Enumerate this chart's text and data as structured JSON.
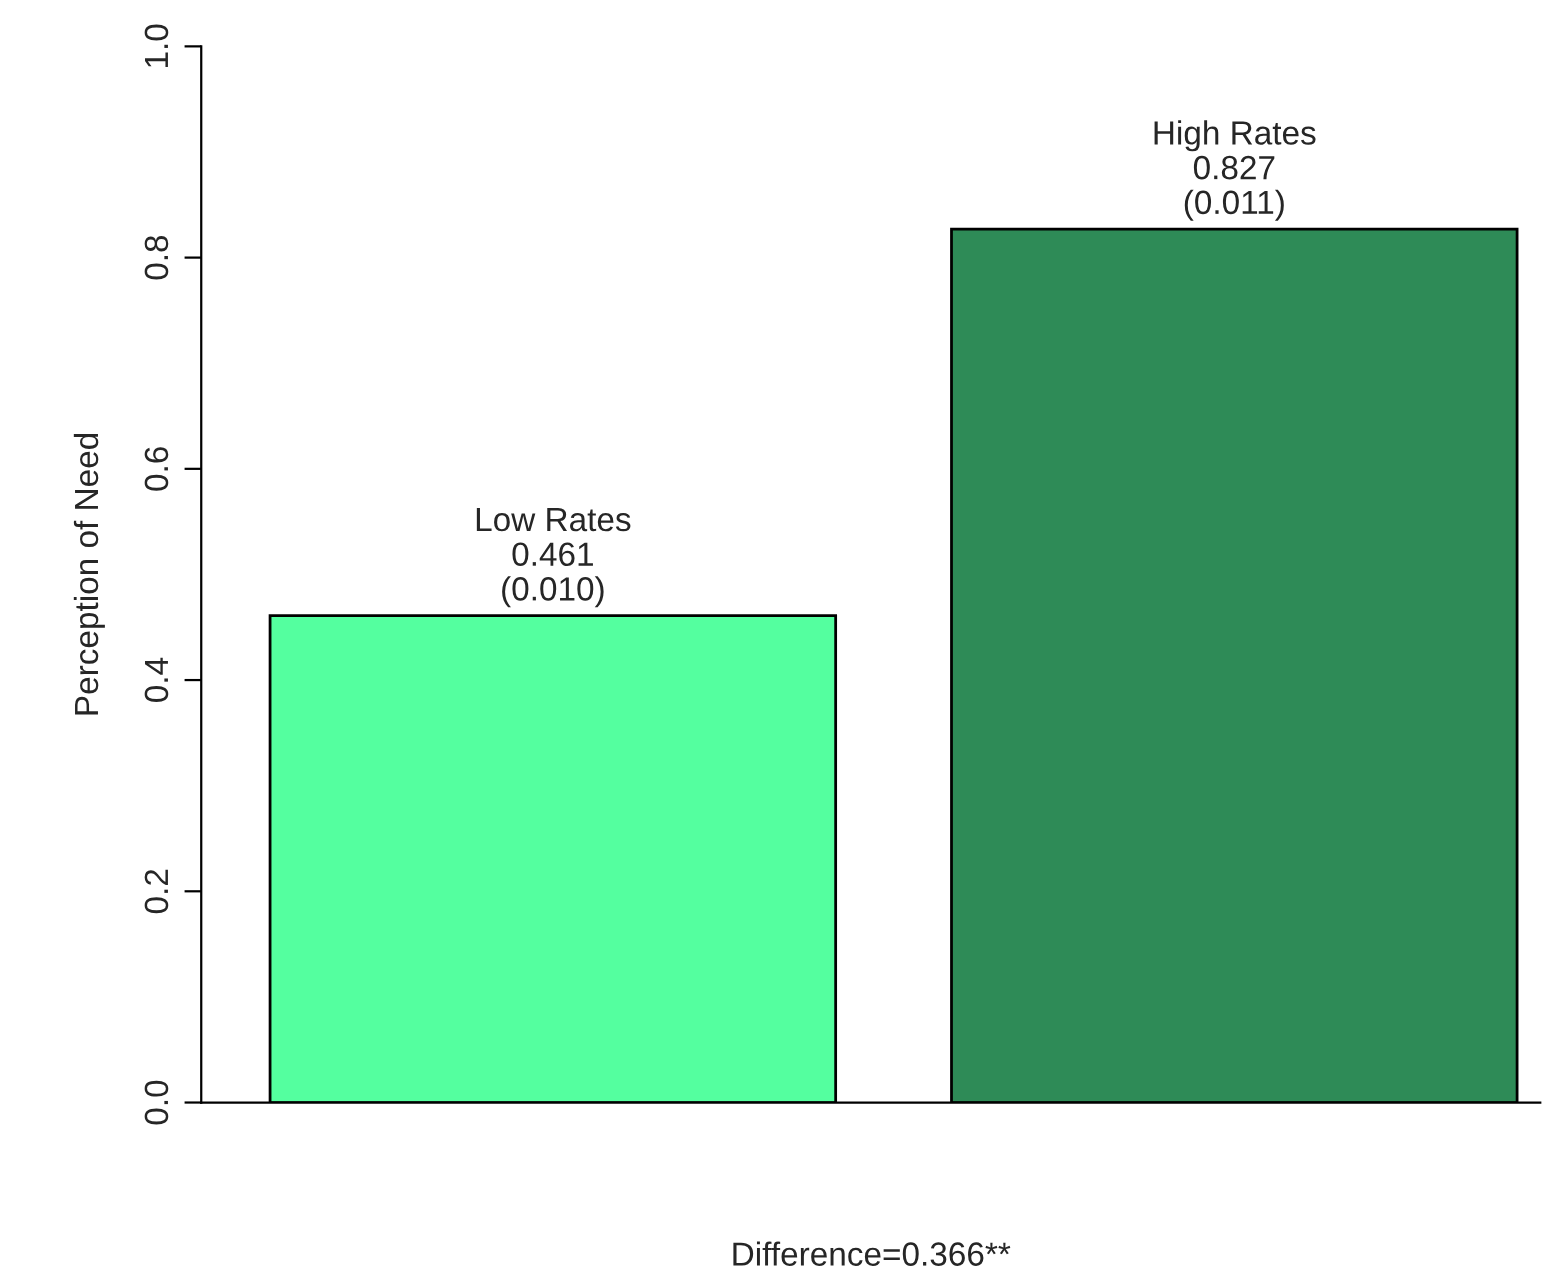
{
  "chart_data": {
    "type": "bar",
    "categories": [
      "Low Rates",
      "High Rates"
    ],
    "values": [
      0.461,
      0.827
    ],
    "colors": [
      "#54ff9f",
      "#2e8b57"
    ],
    "value_labels": [
      "0.461\n(0.010)",
      "0.827\n(0.011)"
    ],
    "ylabel": "Perception of Need",
    "xlabel": "Difference=0.366**",
    "ylim": [
      0,
      1
    ],
    "yticks": [
      {
        "value": 0,
        "label": "0.0"
      },
      {
        "value": 0.2,
        "label": "0.2"
      },
      {
        "value": 0.4,
        "label": "0.4"
      },
      {
        "value": 0.6,
        "label": "0.6"
      },
      {
        "value": 0.8,
        "label": "0.8"
      },
      {
        "value": 1,
        "label": "1.0"
      }
    ],
    "grid": false,
    "legend": false
  }
}
